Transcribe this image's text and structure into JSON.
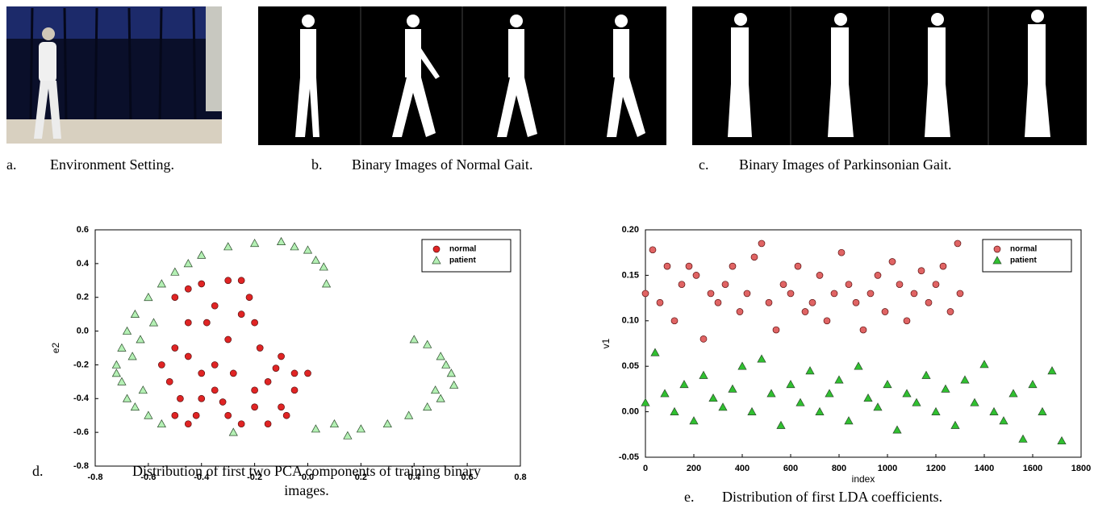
{
  "captions": [
    {
      "label": "a.",
      "text": [
        "Environment Setting."
      ]
    },
    {
      "label": "b.",
      "text": [
        "Binary Images of Normal Gait."
      ]
    },
    {
      "label": "c.",
      "text": [
        "Binary Images of Parkinsonian Gait."
      ]
    },
    {
      "label": "d.",
      "text": [
        "Distribution of first two PCA components of training binary",
        "images."
      ]
    },
    {
      "label": "e.",
      "text": [
        "Distribution of first LDA coefficients."
      ]
    }
  ],
  "chart_data": [
    {
      "type": "scatter",
      "xlabel": "",
      "ylabel": "e2",
      "xlim": [
        -0.8,
        0.8
      ],
      "xticks": [
        -0.8,
        -0.6,
        -0.4,
        -0.2,
        {
          "value": 0,
          "label": "0.0"
        },
        0.2,
        0.4,
        0.6,
        0.8
      ],
      "ylim": [
        -0.8,
        0.6
      ],
      "yticks": [
        -0.8,
        -0.6,
        -0.4,
        -0.2,
        {
          "value": 0,
          "label": "0.0"
        },
        0.2,
        0.4,
        0.6
      ],
      "legend": "upper right",
      "series": [
        {
          "name": "normal",
          "color": "#e02424",
          "marker": "circle",
          "x": [
            -0.5,
            -0.45,
            -0.4,
            -0.3,
            -0.25,
            -0.35,
            -0.45,
            -0.5,
            -0.52,
            -0.5,
            -0.45,
            -0.4,
            -0.35,
            -0.3,
            -0.25,
            -0.2,
            -0.18,
            -0.1,
            -0.05,
            0.0,
            -0.05,
            -0.15,
            -0.2,
            -0.3,
            -0.25,
            -0.35,
            -0.4,
            -0.45,
            -0.38,
            -0.28,
            -0.1,
            -0.15,
            -0.22,
            -0.48,
            -0.55,
            -0.32,
            -0.12,
            -0.42,
            -0.2,
            -0.08
          ],
          "values": [
            0.2,
            0.25,
            0.28,
            0.3,
            0.3,
            0.15,
            0.05,
            -0.1,
            -0.3,
            -0.5,
            -0.55,
            -0.4,
            -0.2,
            -0.05,
            0.1,
            0.05,
            -0.1,
            -0.15,
            -0.25,
            -0.25,
            -0.35,
            -0.3,
            -0.45,
            -0.5,
            -0.55,
            -0.35,
            -0.25,
            -0.15,
            0.05,
            -0.25,
            -0.45,
            -0.55,
            0.2,
            -0.4,
            -0.2,
            -0.42,
            -0.22,
            -0.5,
            -0.35,
            -0.5
          ]
        },
        {
          "name": "patient",
          "color": "#b4f0b4",
          "marker": "triangle",
          "x": [
            -0.72,
            -0.7,
            -0.7,
            -0.68,
            -0.65,
            -0.6,
            -0.55,
            -0.68,
            -0.65,
            -0.6,
            -0.55,
            -0.72,
            -0.66,
            -0.62,
            -0.58,
            -0.63,
            -0.5,
            -0.45,
            -0.4,
            -0.3,
            -0.2,
            -0.1,
            -0.05,
            0.0,
            0.03,
            0.06,
            0.07,
            0.4,
            0.45,
            0.5,
            0.54,
            0.55,
            0.5,
            0.45,
            0.38,
            0.3,
            0.2,
            0.15,
            0.1,
            0.03,
            0.52,
            0.48,
            -0.28
          ],
          "values": [
            -0.2,
            -0.1,
            -0.3,
            -0.4,
            -0.45,
            -0.5,
            -0.55,
            0.0,
            0.1,
            0.2,
            0.28,
            -0.25,
            -0.15,
            -0.35,
            0.05,
            -0.05,
            0.35,
            0.4,
            0.45,
            0.5,
            0.52,
            0.53,
            0.5,
            0.48,
            0.42,
            0.38,
            0.28,
            -0.05,
            -0.08,
            -0.15,
            -0.25,
            -0.32,
            -0.4,
            -0.45,
            -0.5,
            -0.55,
            -0.58,
            -0.62,
            -0.55,
            -0.58,
            -0.2,
            -0.35,
            -0.6
          ]
        }
      ]
    },
    {
      "type": "scatter",
      "xlabel": "index",
      "ylabel": "v1",
      "xlim": [
        0,
        1800
      ],
      "xticks": [
        0,
        200,
        400,
        600,
        800,
        1000,
        1200,
        1400,
        1600,
        1800
      ],
      "ylim": [
        -0.05,
        0.2
      ],
      "yticks": [
        -0.05,
        {
          "value": 0,
          "label": "0.00"
        },
        0.05,
        {
          "value": 0.1,
          "label": "0.10"
        },
        0.15,
        {
          "value": 0.2,
          "label": "0.20"
        }
      ],
      "legend": "upper right",
      "series": [
        {
          "name": "normal",
          "color": "#e06464",
          "marker": "circle",
          "x": [
            0,
            30,
            60,
            90,
            120,
            150,
            180,
            210,
            240,
            270,
            300,
            330,
            360,
            390,
            420,
            450,
            480,
            510,
            540,
            570,
            600,
            630,
            660,
            690,
            720,
            750,
            780,
            810,
            840,
            870,
            900,
            930,
            960,
            990,
            1020,
            1050,
            1080,
            1110,
            1140,
            1170,
            1200,
            1230,
            1260,
            1290,
            1300
          ],
          "values": [
            0.13,
            0.178,
            0.12,
            0.16,
            0.1,
            0.14,
            0.16,
            0.15,
            0.08,
            0.13,
            0.12,
            0.14,
            0.16,
            0.11,
            0.13,
            0.17,
            0.185,
            0.12,
            0.09,
            0.14,
            0.13,
            0.16,
            0.11,
            0.12,
            0.15,
            0.1,
            0.13,
            0.175,
            0.14,
            0.12,
            0.09,
            0.13,
            0.15,
            0.11,
            0.165,
            0.14,
            0.1,
            0.13,
            0.155,
            0.12,
            0.14,
            0.16,
            0.11,
            0.185,
            0.13
          ]
        },
        {
          "name": "patient",
          "color": "#30c030",
          "marker": "triangle",
          "x": [
            0,
            40,
            80,
            120,
            160,
            200,
            240,
            280,
            320,
            360,
            400,
            440,
            480,
            520,
            560,
            600,
            640,
            680,
            720,
            760,
            800,
            840,
            880,
            920,
            960,
            1000,
            1040,
            1080,
            1120,
            1160,
            1200,
            1240,
            1280,
            1320,
            1360,
            1400,
            1440,
            1480,
            1520,
            1560,
            1600,
            1640,
            1680,
            1720
          ],
          "values": [
            0.01,
            0.065,
            0.02,
            0.0,
            0.03,
            -0.01,
            0.04,
            0.015,
            0.005,
            0.025,
            0.05,
            0.0,
            0.058,
            0.02,
            -0.015,
            0.03,
            0.01,
            0.045,
            0.0,
            0.02,
            0.035,
            -0.01,
            0.05,
            0.015,
            0.005,
            0.03,
            -0.02,
            0.02,
            0.01,
            0.04,
            0.0,
            0.025,
            -0.015,
            0.035,
            0.01,
            0.052,
            0.0,
            -0.01,
            0.02,
            -0.03,
            0.03,
            0.0,
            0.045,
            -0.032
          ]
        }
      ]
    }
  ]
}
